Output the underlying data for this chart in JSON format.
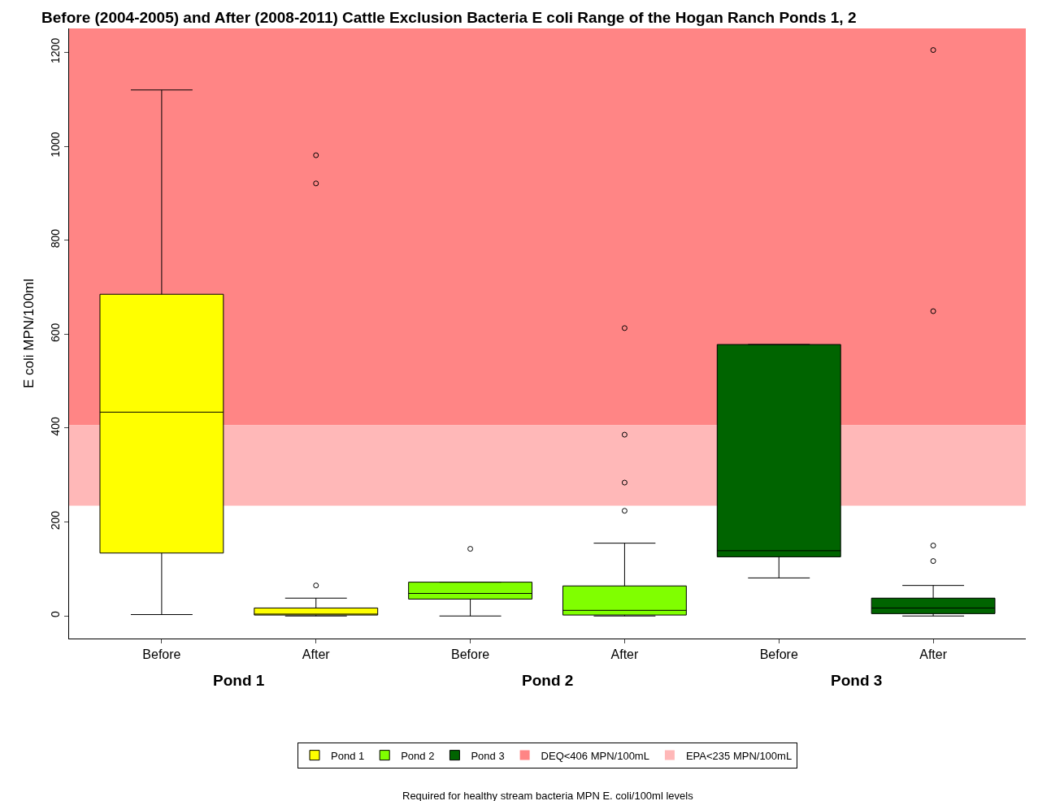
{
  "chart_data": {
    "type": "box",
    "title": "Before (2004-2005) and After (2008-2011) Cattle Exclusion Bacteria E coli Range of the Hogan Ranch Ponds 1, 2",
    "ylabel": "E coli MPN/100ml",
    "categories": [
      "Before",
      "After",
      "Before",
      "After",
      "Before",
      "After"
    ],
    "series": [
      {
        "name": "Pond 1",
        "color": "#ffff00",
        "boxes": [
          {
            "low": 3,
            "q1": 134,
            "median": 434,
            "q3": 685,
            "high": 1120
          },
          {
            "low": 0,
            "q1": 2,
            "median": 4,
            "q3": 17,
            "high": 38,
            "outliers": [
              981,
              921,
              65
            ]
          },
          null,
          null,
          null,
          null
        ]
      },
      {
        "name": "Pond 2",
        "color": "#80ff00",
        "boxes": [
          null,
          null,
          {
            "low": 0,
            "q1": 36,
            "median": 48,
            "q3": 72,
            "high": 72,
            "outliers": [
              143
            ]
          },
          {
            "low": 0,
            "q1": 2,
            "median": 12,
            "q3": 64,
            "high": 155,
            "outliers": [
              613,
              386,
              284,
              224
            ]
          },
          null,
          null
        ]
      },
      {
        "name": "Pond 3",
        "color": "#006400",
        "boxes": [
          null,
          null,
          null,
          null,
          {
            "low": 81,
            "q1": 126,
            "median": 139,
            "q3": 578,
            "high": 578
          },
          {
            "low": 0,
            "q1": 5,
            "median": 17,
            "q3": 38,
            "high": 65,
            "outliers": [
              1205,
              649,
              150,
              117
            ]
          }
        ]
      }
    ],
    "bands": [
      {
        "axis": "y",
        "from": 406,
        "to": 1251,
        "label": "DEQ<406 MPN/100mL",
        "color": "#ff8585"
      },
      {
        "axis": "y",
        "from": 235,
        "to": 406,
        "label": "EPA<235 MPN/100mL",
        "color": "#ffb8b8"
      }
    ],
    "annotations": [
      "Required for healthy stream bacteria MPN E. coli/100ml levels"
    ],
    "ylim": [
      -48,
      1251
    ],
    "yticks": [
      0,
      200,
      400,
      600,
      800,
      1000,
      1200
    ],
    "legend": "bottom"
  }
}
